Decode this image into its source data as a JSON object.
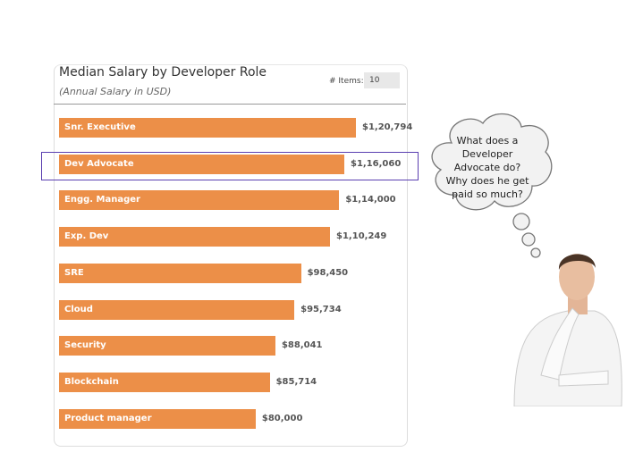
{
  "chart_data": {
    "type": "bar",
    "orientation": "horizontal",
    "title": "Median Salary by Developer Role",
    "subtitle": "(Annual Salary in USD)",
    "categories": [
      "Snr. Executive",
      "Dev Advocate",
      "Engg. Manager",
      "Exp. Dev",
      "SRE",
      "Cloud",
      "Security",
      "Blockchain",
      "Product manager"
    ],
    "values": [
      120794,
      116060,
      114000,
      110249,
      98450,
      95734,
      88041,
      85714,
      80000
    ],
    "value_labels": [
      "$1,20,794",
      "$1,16,060",
      "$1,14,000",
      "$1,10,249",
      "$98,450",
      "$95,734",
      "$88,041",
      "$85,714",
      "$80,000"
    ],
    "highlighted": "Dev Advocate",
    "bar_color": "#ec8f48",
    "highlight_color": "#5a3fb0",
    "xlim": [
      0,
      120794
    ]
  },
  "controls": {
    "items_label": "# Items:",
    "items_value": "10"
  },
  "thought": "What does a Developer Advocate do? Why does he get paid so much?"
}
